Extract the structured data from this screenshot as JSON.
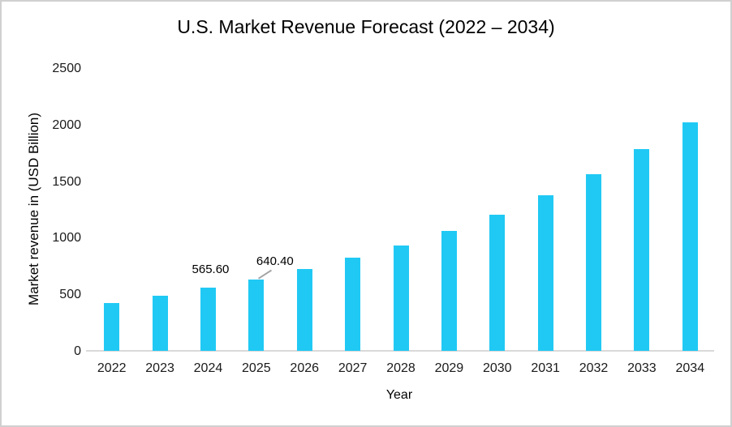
{
  "chart_data": {
    "type": "bar",
    "title": "U.S. Market Revenue Forecast (2022 – 2034)",
    "xlabel": "Year",
    "ylabel": "Market revenue in (USD Billion)",
    "categories": [
      "2022",
      "2023",
      "2024",
      "2025",
      "2026",
      "2027",
      "2028",
      "2029",
      "2030",
      "2031",
      "2032",
      "2033",
      "2034"
    ],
    "values": [
      430,
      495,
      565.6,
      640.4,
      730,
      830,
      935,
      1065,
      1210,
      1385,
      1570,
      1790,
      2030
    ],
    "ylim": [
      0,
      2500
    ],
    "yticks": [
      0,
      500,
      1000,
      1500,
      2000,
      2500
    ],
    "grid": false,
    "legend": false,
    "bar_color": "#20c9f4",
    "axis_line_color": "#d9d9d9",
    "leader_line_color": "#a6a6a6",
    "data_labels": [
      {
        "category": "2024",
        "text": "565.60",
        "dx": 3,
        "leader": false
      },
      {
        "category": "2025",
        "text": "640.40",
        "dx": 23,
        "leader": true
      }
    ]
  }
}
